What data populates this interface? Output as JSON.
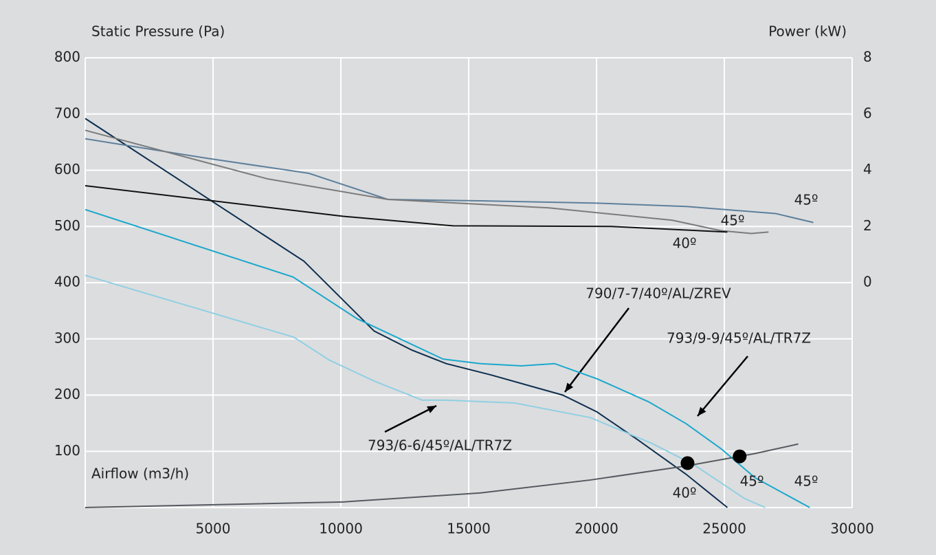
{
  "chart_data": {
    "type": "line",
    "y_label": "Static Pressure (Pa)",
    "y2_label": "Power (kW)",
    "x_label": "Airflow (m3/h)",
    "xlim": [
      0,
      30000
    ],
    "xticks": [
      5000,
      10000,
      15000,
      20000,
      25000,
      30000
    ],
    "ylim": [
      0,
      800
    ],
    "yticks": [
      100,
      200,
      300,
      400,
      500,
      600,
      700,
      800
    ],
    "y2lim": [
      -8,
      8
    ],
    "y2ticks": [
      0,
      2,
      4,
      6,
      8
    ],
    "grid": true,
    "series": [
      {
        "name": "790/7-7/40º/AL/ZREV",
        "label": "40º",
        "color": "#0d2e4e",
        "x": [
          0,
          8560,
          11300,
          12780,
          14120,
          15860,
          18680,
          20020,
          21630,
          23510,
          25120
        ],
        "values": [
          692,
          438,
          314,
          280,
          256,
          236,
          200,
          170,
          120,
          59,
          0
        ]
      },
      {
        "name": "793/9-9/45º/AL/TR7Z",
        "label": "45º",
        "color": "#1aa8cc",
        "x": [
          0,
          8130,
          10630,
          14000,
          15460,
          17070,
          18360,
          20020,
          22040,
          23510,
          24860,
          26200,
          28340
        ],
        "values": [
          530,
          410,
          336,
          264,
          256,
          252,
          256,
          229,
          188,
          149,
          105,
          53,
          0
        ]
      },
      {
        "name": "793/6-6/45º/AL/TR7Z",
        "label": "45º",
        "color": "#8fd0e3",
        "x": [
          0,
          8160,
          9560,
          11300,
          13180,
          14120,
          16800,
          19760,
          22170,
          23780,
          25790,
          26600
        ],
        "values": [
          413,
          303,
          262,
          225,
          191,
          191,
          186,
          160,
          114,
          77,
          16,
          0
        ]
      },
      {
        "color": "#555a60",
        "x": [
          0,
          10090,
          15460,
          19760,
          23510,
          26200,
          27890
        ],
        "values": [
          0,
          10,
          26,
          49,
          74,
          96,
          113
        ]
      },
      {
        "label": "45º",
        "color": "#5c7f9b",
        "axis": "y2",
        "x": [
          0,
          4720,
          8750,
          11840,
          15460,
          20020,
          23510,
          27000,
          28480
        ],
        "values": [
          5.12,
          4.43,
          3.89,
          2.96,
          2.91,
          2.83,
          2.71,
          2.46,
          2.14
        ]
      },
      {
        "label": "45º",
        "color": "#7b7b7b",
        "axis": "y2",
        "x": [
          0,
          7140,
          11840,
          18140,
          22970,
          24860,
          26060,
          26730
        ],
        "values": [
          5.42,
          3.69,
          2.96,
          2.66,
          2.22,
          1.85,
          1.75,
          1.8
        ]
      },
      {
        "label": "40º",
        "color": "#111111",
        "axis": "y2",
        "x": [
          0,
          10090,
          14390,
          20560,
          25120
        ],
        "values": [
          3.45,
          2.36,
          2.02,
          2.0,
          1.8
        ]
      }
    ],
    "points": {
      "color": "#000000",
      "x": [
        23560,
        25600
      ],
      "values": [
        79,
        91
      ]
    }
  }
}
